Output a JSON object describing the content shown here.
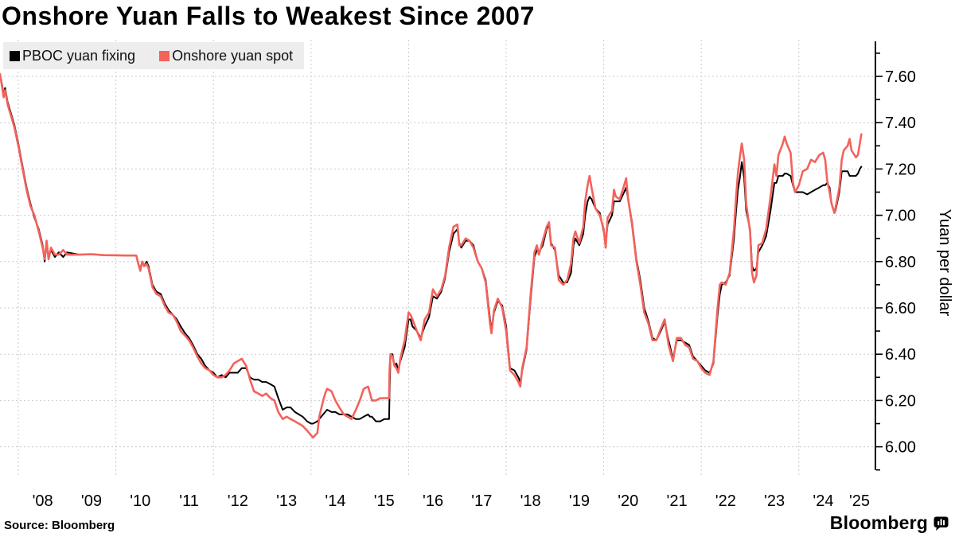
{
  "footer": {
    "source": "Source: Bloomberg",
    "brand": "Bloomberg"
  },
  "chart_data": {
    "type": "line",
    "title": "Onshore Yuan Falls to Weakest Since 2007",
    "xlabel": "",
    "ylabel": "Yuan per dollar",
    "legend_position": "top-left",
    "grid": "dashed",
    "ylim": [
      6.0,
      7.6
    ],
    "y_axis_drawn_range": [
      5.9,
      7.7
    ],
    "y_tick_step_labeled": 0.2,
    "y_tick_step_minor": 0.1,
    "y_tick_labels": [
      "7.60",
      "7.40",
      "7.20",
      "7.00",
      "6.80",
      "6.60",
      "6.40",
      "6.20",
      "6.00"
    ],
    "x_tick_labels": [
      "'08",
      "'09",
      "'10",
      "'11",
      "'12",
      "'13",
      "'14",
      "'15",
      "'16",
      "'17",
      "'18",
      "'19",
      "'20",
      "'21",
      "'22",
      "'23",
      "'24",
      "'25"
    ],
    "grid_years": [
      2008,
      2010,
      2012,
      2014,
      2016,
      2018,
      2020,
      2022,
      2024
    ],
    "x_range_years": [
      2007.62,
      2025.28
    ],
    "series": [
      {
        "name": "PBOC yuan fixing",
        "color": "#000000"
      },
      {
        "name": "Onshore yuan spot",
        "color": "#f4625c"
      }
    ],
    "points_format": [
      "year_decimal",
      "pboc_fixing",
      "onshore_spot"
    ],
    "points": [
      [
        2007.62,
        7.61,
        7.61
      ],
      [
        2007.67,
        7.56,
        7.55
      ],
      [
        2007.7,
        7.52,
        7.51
      ],
      [
        2007.73,
        7.55,
        7.54
      ],
      [
        2007.78,
        7.49,
        7.48
      ],
      [
        2007.85,
        7.44,
        7.43
      ],
      [
        2007.92,
        7.39,
        7.38
      ],
      [
        2008.0,
        7.31,
        7.3
      ],
      [
        2008.08,
        7.22,
        7.21
      ],
      [
        2008.17,
        7.12,
        7.11
      ],
      [
        2008.25,
        7.05,
        7.04
      ],
      [
        2008.33,
        6.99,
        7.0
      ],
      [
        2008.42,
        6.94,
        6.93
      ],
      [
        2008.5,
        6.87,
        6.86
      ],
      [
        2008.54,
        6.8,
        6.81
      ],
      [
        2008.58,
        6.88,
        6.89
      ],
      [
        2008.62,
        6.82,
        6.81
      ],
      [
        2008.67,
        6.85,
        6.86
      ],
      [
        2008.75,
        6.82,
        6.83
      ],
      [
        2008.83,
        6.84,
        6.83
      ],
      [
        2008.92,
        6.82,
        6.85
      ],
      [
        2009.0,
        6.84,
        6.83
      ],
      [
        2009.25,
        6.83,
        6.83
      ],
      [
        2009.5,
        6.832,
        6.832
      ],
      [
        2009.75,
        6.828,
        6.828
      ],
      [
        2010.0,
        6.827,
        6.827
      ],
      [
        2010.25,
        6.826,
        6.826
      ],
      [
        2010.42,
        6.826,
        6.826
      ],
      [
        2010.46,
        6.79,
        6.79
      ],
      [
        2010.5,
        6.77,
        6.76
      ],
      [
        2010.54,
        6.8,
        6.8
      ],
      [
        2010.58,
        6.78,
        6.78
      ],
      [
        2010.63,
        6.8,
        6.79
      ],
      [
        2010.67,
        6.78,
        6.77
      ],
      [
        2010.75,
        6.7,
        6.69
      ],
      [
        2010.83,
        6.67,
        6.66
      ],
      [
        2010.92,
        6.66,
        6.65
      ],
      [
        2011.0,
        6.62,
        6.61
      ],
      [
        2011.08,
        6.59,
        6.58
      ],
      [
        2011.17,
        6.57,
        6.57
      ],
      [
        2011.25,
        6.55,
        6.54
      ],
      [
        2011.33,
        6.52,
        6.5
      ],
      [
        2011.42,
        6.49,
        6.48
      ],
      [
        2011.5,
        6.47,
        6.46
      ],
      [
        2011.58,
        6.44,
        6.43
      ],
      [
        2011.67,
        6.4,
        6.39
      ],
      [
        2011.75,
        6.38,
        6.36
      ],
      [
        2011.83,
        6.35,
        6.34
      ],
      [
        2011.92,
        6.33,
        6.33
      ],
      [
        2012.0,
        6.32,
        6.31
      ],
      [
        2012.08,
        6.3,
        6.3
      ],
      [
        2012.17,
        6.31,
        6.3
      ],
      [
        2012.25,
        6.3,
        6.31
      ],
      [
        2012.33,
        6.32,
        6.33
      ],
      [
        2012.42,
        6.32,
        6.36
      ],
      [
        2012.5,
        6.32,
        6.37
      ],
      [
        2012.58,
        6.34,
        6.38
      ],
      [
        2012.67,
        6.34,
        6.35
      ],
      [
        2012.75,
        6.3,
        6.29
      ],
      [
        2012.83,
        6.29,
        6.24
      ],
      [
        2012.92,
        6.29,
        6.23
      ],
      [
        2013.0,
        6.28,
        6.22
      ],
      [
        2013.08,
        6.28,
        6.23
      ],
      [
        2013.17,
        6.27,
        6.21
      ],
      [
        2013.25,
        6.26,
        6.2
      ],
      [
        2013.33,
        6.21,
        6.15
      ],
      [
        2013.42,
        6.16,
        6.12
      ],
      [
        2013.5,
        6.17,
        6.13
      ],
      [
        2013.58,
        6.17,
        6.12
      ],
      [
        2013.67,
        6.15,
        6.11
      ],
      [
        2013.75,
        6.14,
        6.1
      ],
      [
        2013.83,
        6.13,
        6.09
      ],
      [
        2013.92,
        6.11,
        6.07
      ],
      [
        2014.0,
        6.1,
        6.05
      ],
      [
        2014.04,
        6.1,
        6.04
      ],
      [
        2014.13,
        6.11,
        6.06
      ],
      [
        2014.17,
        6.12,
        6.13
      ],
      [
        2014.25,
        6.14,
        6.2
      ],
      [
        2014.29,
        6.15,
        6.23
      ],
      [
        2014.33,
        6.16,
        6.25
      ],
      [
        2014.42,
        6.15,
        6.24
      ],
      [
        2014.5,
        6.15,
        6.2
      ],
      [
        2014.58,
        6.14,
        6.17
      ],
      [
        2014.67,
        6.14,
        6.14
      ],
      [
        2014.75,
        6.14,
        6.13
      ],
      [
        2014.83,
        6.13,
        6.12
      ],
      [
        2014.92,
        6.12,
        6.16
      ],
      [
        2015.0,
        6.12,
        6.2
      ],
      [
        2015.08,
        6.13,
        6.25
      ],
      [
        2015.17,
        6.14,
        6.26
      ],
      [
        2015.21,
        6.13,
        6.23
      ],
      [
        2015.25,
        6.13,
        6.2
      ],
      [
        2015.33,
        6.11,
        6.2
      ],
      [
        2015.42,
        6.11,
        6.21
      ],
      [
        2015.5,
        6.12,
        6.21
      ],
      [
        2015.58,
        6.12,
        6.21
      ],
      [
        2015.6,
        6.12,
        6.21
      ],
      [
        2015.61,
        6.23,
        6.33
      ],
      [
        2015.63,
        6.4,
        6.4
      ],
      [
        2015.67,
        6.4,
        6.39
      ],
      [
        2015.71,
        6.35,
        6.35
      ],
      [
        2015.75,
        6.36,
        6.34
      ],
      [
        2015.79,
        6.33,
        6.32
      ],
      [
        2015.83,
        6.37,
        6.38
      ],
      [
        2015.92,
        6.43,
        6.46
      ],
      [
        2016.0,
        6.55,
        6.58
      ],
      [
        2016.04,
        6.55,
        6.57
      ],
      [
        2016.08,
        6.52,
        6.55
      ],
      [
        2016.17,
        6.5,
        6.5
      ],
      [
        2016.25,
        6.47,
        6.46
      ],
      [
        2016.33,
        6.52,
        6.55
      ],
      [
        2016.42,
        6.56,
        6.58
      ],
      [
        2016.5,
        6.65,
        6.68
      ],
      [
        2016.58,
        6.64,
        6.65
      ],
      [
        2016.67,
        6.67,
        6.68
      ],
      [
        2016.75,
        6.73,
        6.74
      ],
      [
        2016.83,
        6.84,
        6.86
      ],
      [
        2016.92,
        6.92,
        6.95
      ],
      [
        2017.0,
        6.94,
        6.96
      ],
      [
        2017.04,
        6.88,
        6.87
      ],
      [
        2017.08,
        6.86,
        6.87
      ],
      [
        2017.17,
        6.89,
        6.9
      ],
      [
        2017.25,
        6.89,
        6.89
      ],
      [
        2017.33,
        6.87,
        6.86
      ],
      [
        2017.42,
        6.8,
        6.8
      ],
      [
        2017.5,
        6.77,
        6.77
      ],
      [
        2017.58,
        6.72,
        6.71
      ],
      [
        2017.67,
        6.55,
        6.53
      ],
      [
        2017.7,
        6.5,
        6.49
      ],
      [
        2017.75,
        6.58,
        6.59
      ],
      [
        2017.83,
        6.63,
        6.64
      ],
      [
        2017.92,
        6.61,
        6.6
      ],
      [
        2018.0,
        6.52,
        6.5
      ],
      [
        2018.08,
        6.34,
        6.33
      ],
      [
        2018.17,
        6.33,
        6.31
      ],
      [
        2018.25,
        6.3,
        6.28
      ],
      [
        2018.29,
        6.28,
        6.26
      ],
      [
        2018.33,
        6.33,
        6.34
      ],
      [
        2018.42,
        6.42,
        6.43
      ],
      [
        2018.5,
        6.63,
        6.65
      ],
      [
        2018.58,
        6.82,
        6.84
      ],
      [
        2018.63,
        6.85,
        6.87
      ],
      [
        2018.67,
        6.84,
        6.83
      ],
      [
        2018.75,
        6.87,
        6.89
      ],
      [
        2018.83,
        6.94,
        6.95
      ],
      [
        2018.88,
        6.96,
        6.97
      ],
      [
        2018.92,
        6.88,
        6.87
      ],
      [
        2019.0,
        6.85,
        6.86
      ],
      [
        2019.08,
        6.74,
        6.72
      ],
      [
        2019.17,
        6.71,
        6.7
      ],
      [
        2019.25,
        6.71,
        6.72
      ],
      [
        2019.33,
        6.75,
        6.79
      ],
      [
        2019.38,
        6.87,
        6.9
      ],
      [
        2019.42,
        6.9,
        6.93
      ],
      [
        2019.5,
        6.87,
        6.88
      ],
      [
        2019.58,
        6.92,
        6.95
      ],
      [
        2019.62,
        7.0,
        7.06
      ],
      [
        2019.67,
        7.06,
        7.13
      ],
      [
        2019.71,
        7.08,
        7.17
      ],
      [
        2019.75,
        7.07,
        7.12
      ],
      [
        2019.83,
        7.03,
        7.03
      ],
      [
        2019.92,
        7.01,
        7.0
      ],
      [
        2020.0,
        6.93,
        6.94
      ],
      [
        2020.04,
        6.88,
        6.86
      ],
      [
        2020.08,
        6.96,
        6.99
      ],
      [
        2020.17,
        7.0,
        7.02
      ],
      [
        2020.21,
        7.06,
        7.11
      ],
      [
        2020.25,
        7.06,
        7.08
      ],
      [
        2020.33,
        7.06,
        7.07
      ],
      [
        2020.42,
        7.1,
        7.13
      ],
      [
        2020.46,
        7.12,
        7.16
      ],
      [
        2020.5,
        7.07,
        7.07
      ],
      [
        2020.58,
        6.97,
        6.96
      ],
      [
        2020.67,
        6.81,
        6.8
      ],
      [
        2020.75,
        6.72,
        6.7
      ],
      [
        2020.83,
        6.6,
        6.58
      ],
      [
        2020.92,
        6.54,
        6.53
      ],
      [
        2021.0,
        6.47,
        6.46
      ],
      [
        2021.08,
        6.46,
        6.46
      ],
      [
        2021.17,
        6.5,
        6.51
      ],
      [
        2021.25,
        6.54,
        6.55
      ],
      [
        2021.33,
        6.46,
        6.44
      ],
      [
        2021.42,
        6.38,
        6.37
      ],
      [
        2021.5,
        6.46,
        6.47
      ],
      [
        2021.58,
        6.46,
        6.47
      ],
      [
        2021.67,
        6.45,
        6.44
      ],
      [
        2021.75,
        6.44,
        6.43
      ],
      [
        2021.83,
        6.39,
        6.38
      ],
      [
        2021.92,
        6.37,
        6.37
      ],
      [
        2022.0,
        6.35,
        6.34
      ],
      [
        2022.08,
        6.33,
        6.32
      ],
      [
        2022.17,
        6.32,
        6.31
      ],
      [
        2022.25,
        6.36,
        6.37
      ],
      [
        2022.33,
        6.56,
        6.59
      ],
      [
        2022.38,
        6.66,
        6.7
      ],
      [
        2022.42,
        6.7,
        6.71
      ],
      [
        2022.5,
        6.71,
        6.7
      ],
      [
        2022.58,
        6.74,
        6.75
      ],
      [
        2022.67,
        6.9,
        6.94
      ],
      [
        2022.71,
        7.01,
        7.07
      ],
      [
        2022.75,
        7.11,
        7.18
      ],
      [
        2022.79,
        7.16,
        7.25
      ],
      [
        2022.83,
        7.23,
        7.31
      ],
      [
        2022.88,
        7.16,
        7.24
      ],
      [
        2022.92,
        7.02,
        7.05
      ],
      [
        2023.0,
        6.94,
        6.93
      ],
      [
        2023.04,
        6.78,
        6.75
      ],
      [
        2023.08,
        6.76,
        6.71
      ],
      [
        2023.13,
        6.77,
        6.74
      ],
      [
        2023.17,
        6.84,
        6.87
      ],
      [
        2023.25,
        6.87,
        6.88
      ],
      [
        2023.33,
        6.91,
        6.94
      ],
      [
        2023.42,
        7.02,
        7.08
      ],
      [
        2023.5,
        7.14,
        7.22
      ],
      [
        2023.54,
        7.14,
        7.17
      ],
      [
        2023.58,
        7.17,
        7.26
      ],
      [
        2023.67,
        7.17,
        7.31
      ],
      [
        2023.71,
        7.18,
        7.34
      ],
      [
        2023.75,
        7.18,
        7.31
      ],
      [
        2023.83,
        7.17,
        7.27
      ],
      [
        2023.88,
        7.13,
        7.14
      ],
      [
        2023.92,
        7.1,
        7.1
      ],
      [
        2024.0,
        7.1,
        7.13
      ],
      [
        2024.08,
        7.1,
        7.19
      ],
      [
        2024.17,
        7.09,
        7.2
      ],
      [
        2024.25,
        7.1,
        7.24
      ],
      [
        2024.33,
        7.11,
        7.23
      ],
      [
        2024.42,
        7.12,
        7.26
      ],
      [
        2024.5,
        7.13,
        7.27
      ],
      [
        2024.54,
        7.13,
        7.24
      ],
      [
        2024.58,
        7.14,
        7.15
      ],
      [
        2024.63,
        7.12,
        7.1
      ],
      [
        2024.67,
        7.05,
        7.05
      ],
      [
        2024.73,
        7.01,
        7.01
      ],
      [
        2024.75,
        7.02,
        7.03
      ],
      [
        2024.83,
        7.1,
        7.12
      ],
      [
        2024.88,
        7.19,
        7.24
      ],
      [
        2024.92,
        7.19,
        7.28
      ],
      [
        2025.0,
        7.19,
        7.3
      ],
      [
        2025.04,
        7.17,
        7.33
      ],
      [
        2025.08,
        7.17,
        7.28
      ],
      [
        2025.17,
        7.17,
        7.25
      ],
      [
        2025.21,
        7.18,
        7.26
      ],
      [
        2025.25,
        7.2,
        7.31
      ],
      [
        2025.28,
        7.21,
        7.35
      ]
    ]
  }
}
